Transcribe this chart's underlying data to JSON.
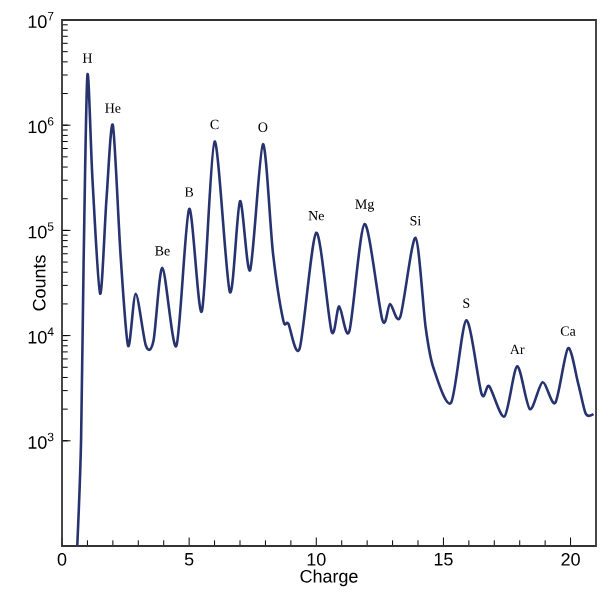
{
  "chart_data": {
    "type": "line",
    "xlabel": "Charge",
    "ylabel": "Counts",
    "log": "y",
    "xlim": [
      0,
      21
    ],
    "ylim": [
      100,
      10000000
    ],
    "xticks": [
      0,
      5,
      10,
      15,
      20
    ],
    "yticks": [
      {
        "value": 1000,
        "label": "10$^{3}$"
      },
      {
        "value": 10000,
        "label": "10$^{4}$"
      },
      {
        "value": 100000,
        "label": "10$^{5}$"
      },
      {
        "value": 1000000,
        "label": "10$^{6}$"
      },
      {
        "value": 10000000,
        "label": "10$^{7}$"
      }
    ],
    "grid": false,
    "marker": "none",
    "line_style": "solid",
    "series": [
      {
        "color": "#27336f",
        "x": [
          0.6,
          0.75,
          0.85,
          1.0,
          1.2,
          1.5,
          1.75,
          2.0,
          2.3,
          2.6,
          2.9,
          3.3,
          3.6,
          3.95,
          4.5,
          5.0,
          5.5,
          6.0,
          6.6,
          7.0,
          7.4,
          7.9,
          8.3,
          8.7,
          8.9,
          9.35,
          10.0,
          10.6,
          10.9,
          11.3,
          11.9,
          12.6,
          12.9,
          13.3,
          13.9,
          14.3,
          14.6,
          15.3,
          15.9,
          16.5,
          16.8,
          17.4,
          17.9,
          18.4,
          18.9,
          19.4,
          19.9,
          20.3,
          20.6,
          20.9
        ],
        "values": [
          100,
          1000,
          50000,
          3000000,
          300000,
          25000,
          200000,
          1000000,
          60000,
          8000,
          25000,
          8000,
          9000,
          44000,
          8000,
          160000,
          17000,
          700000,
          26000,
          190000,
          42000,
          660000,
          60000,
          14000,
          13000,
          7600,
          95000,
          11000,
          19000,
          11000,
          115000,
          14000,
          20000,
          15000,
          85000,
          12000,
          5000,
          2300,
          14000,
          2800,
          3300,
          1700,
          5100,
          2000,
          3600,
          2300,
          7600,
          3500,
          1800,
          1800
        ]
      }
    ],
    "annotations": [
      {
        "text": "H",
        "x": 1.0,
        "y": 3000000
      },
      {
        "text": "He",
        "x": 2.0,
        "y": 1000000
      },
      {
        "text": "Be",
        "x": 3.95,
        "y": 44000
      },
      {
        "text": "B",
        "x": 5.0,
        "y": 160000
      },
      {
        "text": "C",
        "x": 6.0,
        "y": 700000
      },
      {
        "text": "O",
        "x": 7.9,
        "y": 660000
      },
      {
        "text": "Ne",
        "x": 10.0,
        "y": 95000
      },
      {
        "text": "Mg",
        "x": 11.9,
        "y": 115000
      },
      {
        "text": "Si",
        "x": 13.9,
        "y": 85000
      },
      {
        "text": "S",
        "x": 15.9,
        "y": 14000
      },
      {
        "text": "Ar",
        "x": 17.9,
        "y": 5100
      },
      {
        "text": "Ca",
        "x": 19.9,
        "y": 7600
      }
    ]
  }
}
